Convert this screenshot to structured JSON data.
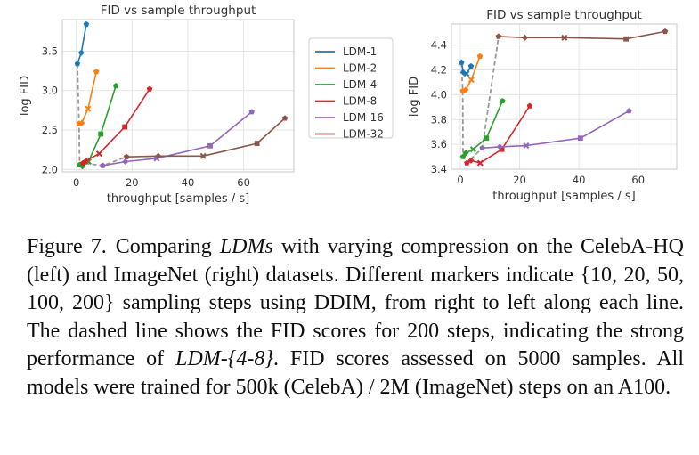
{
  "colors": {
    "LDM-1": "#1f77b4",
    "LDM-2": "#ff7f0e",
    "LDM-4": "#2ca02c",
    "LDM-8": "#d62728",
    "LDM-16": "#9467bd",
    "LDM-32": "#8c564b",
    "dashed": "#999999",
    "grid": "#e5e5e5",
    "axes": "#c8c8c8"
  },
  "chart_data": [
    {
      "type": "line",
      "name": "CelebA-HQ",
      "title": "FID vs sample throughput",
      "xlabel": "throughput [samples / s]",
      "ylabel": "log FID",
      "xlim": [
        -5,
        78
      ],
      "ylim": [
        1.97,
        3.9
      ],
      "xticks": [
        0,
        20,
        40,
        60
      ],
      "yticks": [
        2.0,
        2.5,
        3.0,
        3.5
      ],
      "ytick_labels": [
        "2.0",
        "2.5",
        "3.0",
        "3.5"
      ],
      "marker_steps": [
        200,
        100,
        50,
        20,
        10
      ],
      "series": [
        {
          "name": "LDM-1",
          "points": [
            [
              0.4,
              3.34
            ],
            [
              1.8,
              3.48
            ],
            [
              3.6,
              3.84
            ]
          ]
        },
        {
          "name": "LDM-2",
          "points": [
            [
              1.0,
              2.58
            ],
            [
              2.0,
              2.59
            ],
            [
              4.2,
              2.77
            ],
            [
              7.2,
              3.24
            ]
          ]
        },
        {
          "name": "LDM-4",
          "points": [
            [
              1.2,
              2.06
            ],
            [
              2.2,
              2.04
            ],
            [
              4.4,
              2.1
            ],
            [
              8.8,
              2.45
            ],
            [
              14.2,
              3.06
            ]
          ]
        },
        {
          "name": "LDM-8",
          "points": [
            [
              2.4,
              2.08
            ],
            [
              3.5,
              2.11
            ],
            [
              8.2,
              2.2
            ],
            [
              17.4,
              2.54
            ],
            [
              26.3,
              3.02
            ]
          ]
        },
        {
          "name": "LDM-16",
          "points": [
            [
              9.5,
              2.05
            ],
            [
              17.6,
              2.1
            ],
            [
              28.8,
              2.14
            ],
            [
              48.0,
              2.3
            ],
            [
              62.9,
              2.73
            ]
          ]
        },
        {
          "name": "LDM-32",
          "points": [
            [
              18.0,
              2.16
            ],
            [
              29.4,
              2.17
            ],
            [
              45.5,
              2.17
            ],
            [
              64.8,
              2.33
            ],
            [
              74.8,
              2.65
            ]
          ]
        }
      ],
      "dashed": [
        [
          0.4,
          3.34
        ],
        [
          1.0,
          2.58
        ],
        [
          1.2,
          2.06
        ],
        [
          2.4,
          2.08
        ],
        [
          9.5,
          2.05
        ],
        [
          18.0,
          2.16
        ]
      ]
    },
    {
      "type": "line",
      "name": "ImageNet",
      "title": "FID vs sample throughput",
      "xlabel": "throughput [samples / s]",
      "ylabel": "log FID",
      "xlim": [
        -3,
        73
      ],
      "ylim": [
        3.4,
        4.57
      ],
      "xticks": [
        0,
        20,
        40,
        60
      ],
      "yticks": [
        3.4,
        3.6,
        3.8,
        4.0,
        4.2,
        4.4
      ],
      "ytick_labels": [
        "3.4",
        "3.6",
        "3.8",
        "4.0",
        "4.2",
        "4.4"
      ],
      "marker_steps": [
        200,
        100,
        50,
        20,
        10
      ],
      "series": [
        {
          "name": "LDM-1",
          "points": [
            [
              0.4,
              4.26
            ],
            [
              1.0,
              4.18
            ],
            [
              2.1,
              4.17
            ],
            [
              3.6,
              4.23
            ]
          ]
        },
        {
          "name": "LDM-2",
          "points": [
            [
              0.8,
              4.03
            ],
            [
              1.8,
              4.04
            ],
            [
              3.7,
              4.12
            ],
            [
              6.6,
              4.31
            ]
          ]
        },
        {
          "name": "LDM-4",
          "points": [
            [
              0.9,
              3.5
            ],
            [
              1.8,
              3.53
            ],
            [
              4.3,
              3.56
            ],
            [
              8.8,
              3.65
            ],
            [
              14.2,
              3.95
            ]
          ]
        },
        {
          "name": "LDM-8",
          "points": [
            [
              2.2,
              3.45
            ],
            [
              3.6,
              3.47
            ],
            [
              6.7,
              3.45
            ],
            [
              14.0,
              3.56
            ],
            [
              23.4,
              3.91
            ]
          ]
        },
        {
          "name": "LDM-16",
          "points": [
            [
              7.4,
              3.57
            ],
            [
              13.3,
              3.58
            ],
            [
              22.2,
              3.59
            ],
            [
              40.5,
              3.65
            ],
            [
              56.9,
              3.87
            ]
          ]
        },
        {
          "name": "LDM-32",
          "points": [
            [
              12.9,
              4.47
            ],
            [
              21.8,
              4.46
            ],
            [
              35.1,
              4.46
            ],
            [
              55.9,
              4.45
            ],
            [
              69.1,
              4.51
            ]
          ]
        }
      ],
      "dashed": [
        [
          0.4,
          4.26
        ],
        [
          0.8,
          4.03
        ],
        [
          0.9,
          3.5
        ],
        [
          2.2,
          3.45
        ],
        [
          7.4,
          3.57
        ],
        [
          12.9,
          4.47
        ]
      ]
    }
  ],
  "legend": [
    "LDM-1",
    "LDM-2",
    "LDM-4",
    "LDM-8",
    "LDM-16",
    "LDM-32"
  ],
  "caption": {
    "label": "Figure 7.",
    "p1": "Comparing ",
    "i1": "LDMs",
    "p2": " with varying compression on the CelebA-HQ (left) and ImageNet (right) datasets. Different markers indicate {10, 20, 50, 100, 200} sampling steps using DDIM, from right to left along each line. The dashed line shows the FID scores for 200 steps, indicating the strong performance of ",
    "i2": "LDM-{4-8}",
    "p3": ". FID scores assessed on 5000 samples. All models were trained for 500k (CelebA) / 2M (ImageNet) steps on an A100."
  }
}
